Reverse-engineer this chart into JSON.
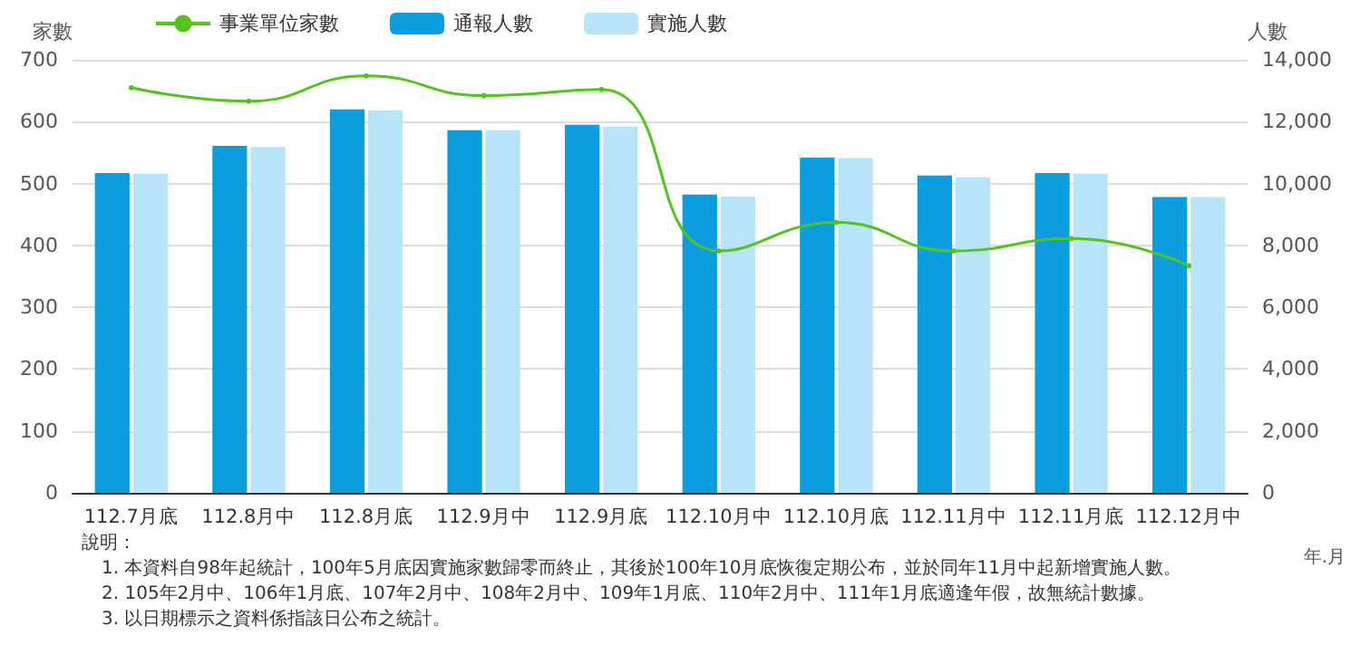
{
  "chart_data": {
    "type": "bar",
    "ylabel": "家數",
    "y2label": "人數",
    "xlabel": "年.月",
    "categories": [
      "112.7月底",
      "112.8月中",
      "112.8月底",
      "112.9月中",
      "112.9月底",
      "112.10月中",
      "112.10月底",
      "112.11月中",
      "112.11月底",
      "112.12月中"
    ],
    "series": [
      {
        "name": "事業單位家數",
        "type": "line",
        "color": "#52c41a",
        "values": [
          655,
          633,
          674,
          642,
          652,
          391,
          437,
          391,
          411,
          367
        ]
      },
      {
        "name": "通報人數",
        "axis": "y2",
        "color": "#0a9ee0",
        "values": [
          10340,
          11220,
          12400,
          11720,
          11900,
          9640,
          10840,
          10260,
          10340,
          9560
        ]
      },
      {
        "name": "實施人數",
        "axis": "y2",
        "color": "#b8e4fa",
        "values": [
          10320,
          11180,
          12360,
          11720,
          11840,
          9580,
          10820,
          10200,
          10320,
          9560
        ]
      }
    ],
    "ylim": [
      0,
      700
    ],
    "yticks": [
      0,
      100,
      200,
      300,
      400,
      500,
      600,
      700
    ],
    "y2lim": [
      0,
      14000
    ],
    "y2ticks": [
      {
        "value": 0,
        "label": "0"
      },
      {
        "value": 2000,
        "label": "2,000"
      },
      {
        "value": 4000,
        "label": "4,000"
      },
      {
        "value": 6000,
        "label": "6,000"
      },
      {
        "value": 8000,
        "label": "8,000"
      },
      {
        "value": 10000,
        "label": "10,000"
      },
      {
        "value": 12000,
        "label": "12,000"
      },
      {
        "value": 14000,
        "label": "14,000"
      }
    ],
    "grid": "y",
    "legend": "top left",
    "marker": "circle",
    "line_style": "solid",
    "annotations": [
      "說明：",
      "1. 本資料自98年起統計，100年5月底因實施家數歸零而終止，其後於100年10月底恢復定期公布，並於同年11月中起新增實施人數。",
      "2. 105年2月中、106年1月底、107年2月中、108年2月中、109年1月底、110年2月中、111年1月底適逢年假，故無統計數據。",
      "3. 以日期標示之資料係指該日公布之統計。"
    ]
  }
}
